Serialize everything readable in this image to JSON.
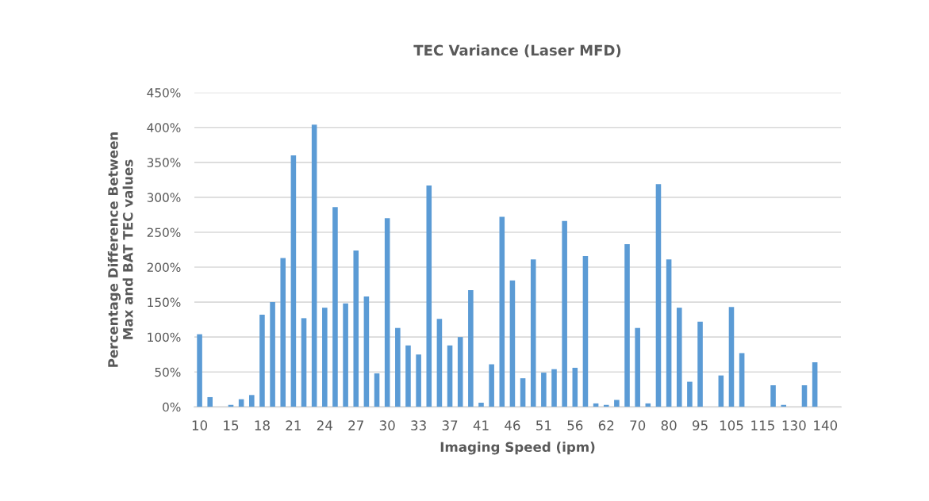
{
  "chart_data": {
    "type": "bar",
    "title": "TEC Variance (Laser MFD)",
    "xlabel": "Imaging Speed (ipm)",
    "ylabel": "Percentage Difference Between\nMax and BAT TEC values",
    "categories": [
      "10",
      null,
      null,
      "15",
      null,
      null,
      "18",
      null,
      null,
      "21",
      null,
      null,
      "24",
      null,
      null,
      "27",
      null,
      null,
      "30",
      null,
      null,
      "33",
      null,
      null,
      "37",
      null,
      null,
      "41",
      null,
      null,
      "46",
      null,
      null,
      "51",
      null,
      null,
      "56",
      null,
      null,
      "62",
      null,
      null,
      "70",
      null,
      null,
      "80",
      null,
      null,
      "95",
      null,
      null,
      "105",
      null,
      null,
      "115",
      null,
      null,
      "130",
      null,
      null,
      "140",
      null
    ],
    "values": [
      104,
      14,
      0,
      3,
      11,
      17,
      132,
      150,
      213,
      360,
      127,
      404,
      142,
      286,
      148,
      224,
      158,
      48,
      270,
      113,
      88,
      75,
      317,
      126,
      88,
      100,
      167,
      6,
      61,
      272,
      181,
      41,
      211,
      49,
      54,
      266,
      56,
      216,
      5,
      3,
      10,
      233,
      113,
      5,
      319,
      211,
      142,
      36,
      122,
      0,
      45,
      143,
      77,
      0,
      0,
      31,
      3,
      0,
      31,
      64,
      0,
      0
    ],
    "color": "#5b9bd5",
    "ylim": [
      0,
      450
    ],
    "yticks": [
      {
        "value": 0,
        "label": "0%"
      },
      {
        "value": 50,
        "label": "50%"
      },
      {
        "value": 100,
        "label": "100%"
      },
      {
        "value": 150,
        "label": "150%"
      },
      {
        "value": 200,
        "label": "200%"
      },
      {
        "value": 250,
        "label": "250%"
      },
      {
        "value": 300,
        "label": "300%"
      },
      {
        "value": 350,
        "label": "350%"
      },
      {
        "value": 400,
        "label": "400%"
      },
      {
        "value": 450,
        "label": "450%"
      }
    ],
    "grid": "y",
    "legend": false
  }
}
